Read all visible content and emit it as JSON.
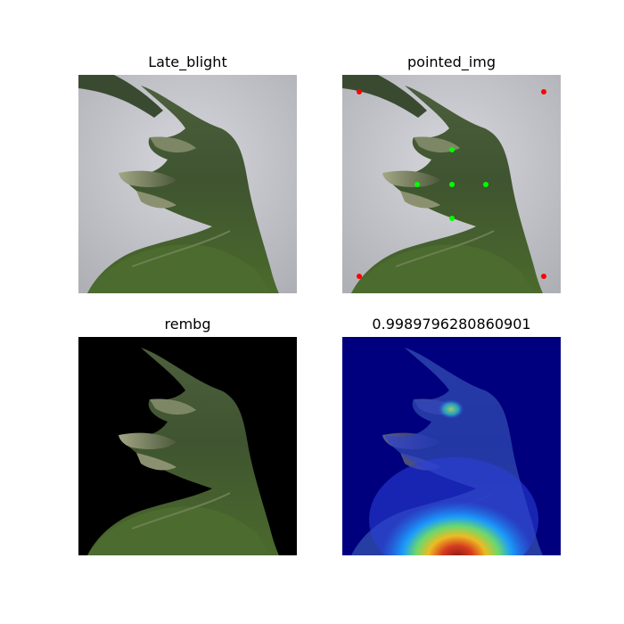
{
  "panels": [
    {
      "title": "Late_blight"
    },
    {
      "title": "pointed_img"
    },
    {
      "title": "rembg"
    },
    {
      "title": "0.9989796280860901"
    }
  ],
  "colors": {
    "background_gray": "#c9c9cf",
    "leaf_dark": "#3d5230",
    "leaf_mid": "#5a6e45",
    "leaf_light": "#9aa27a",
    "marker_red": "#ff0000",
    "marker_green": "#00ff00",
    "heatmap_low": "#00007f",
    "heatmap_high": "#d4361a"
  },
  "markers": {
    "red_count": 4,
    "green_count": 5
  }
}
